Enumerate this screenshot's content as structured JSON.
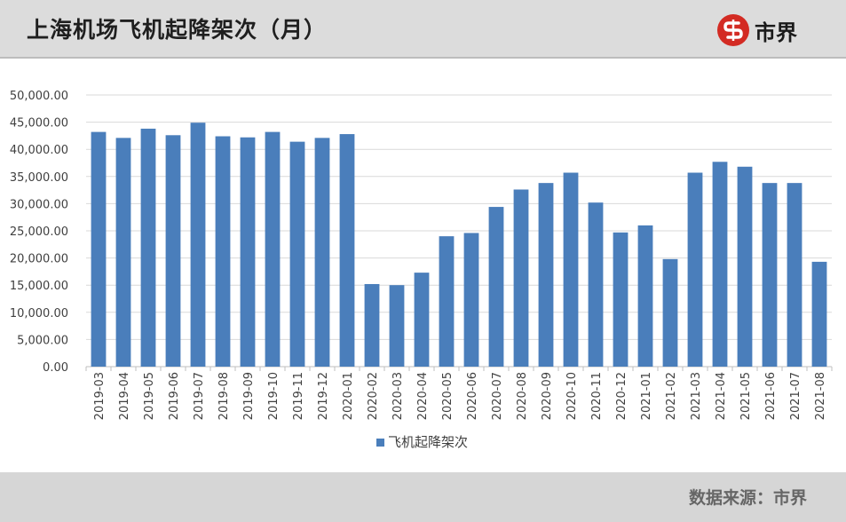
{
  "header": {
    "title": "上海机场飞机起降架次（月）",
    "logo_text": "市界"
  },
  "footer": {
    "source": "数据来源：市界"
  },
  "colors": {
    "bar": "#4a7ebb",
    "header_bg": "#dcdcdc",
    "footer_bg": "#d6d6d6",
    "logo_red": "#d32b23",
    "gridline": "#d9d9d9"
  },
  "chart_data": {
    "type": "bar",
    "categories": [
      "2019-03",
      "2019-04",
      "2019-05",
      "2019-06",
      "2019-07",
      "2019-08",
      "2019-09",
      "2019-10",
      "2019-11",
      "2019-12",
      "2020-01",
      "2020-02",
      "2020-03",
      "2020-04",
      "2020-05",
      "2020-06",
      "2020-07",
      "2020-08",
      "2020-09",
      "2020-10",
      "2020-11",
      "2020-12",
      "2021-01",
      "2021-02",
      "2021-03",
      "2021-04",
      "2021-05",
      "2021-06",
      "2021-07",
      "2021-08"
    ],
    "series": [
      {
        "name": "飞机起降架次",
        "values": [
          43200,
          42100,
          43800,
          42600,
          44900,
          42400,
          42200,
          43200,
          41400,
          42100,
          42800,
          15200,
          15000,
          17300,
          24000,
          24600,
          29400,
          32600,
          33800,
          35700,
          30200,
          24700,
          26000,
          19800,
          35700,
          37700,
          36800,
          33800,
          33800,
          19300
        ]
      }
    ],
    "y_ticks": [
      "0.00",
      "5,000.00",
      "10,000.00",
      "15,000.00",
      "20,000.00",
      "25,000.00",
      "30,000.00",
      "35,000.00",
      "40,000.00",
      "45,000.00",
      "50,000.00"
    ],
    "ylim": [
      0,
      50000
    ],
    "grid": true,
    "legend_position": "bottom"
  }
}
